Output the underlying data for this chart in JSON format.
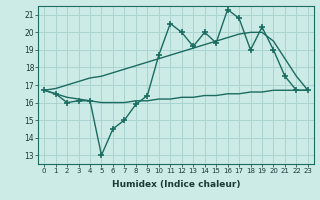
{
  "title": "",
  "xlabel": "Humidex (Indice chaleur)",
  "ylabel": "",
  "background_color": "#cceae6",
  "grid_color": "#aad4d0",
  "line_color": "#1a6b60",
  "xlim": [
    -0.5,
    23.5
  ],
  "ylim": [
    12.5,
    21.5
  ],
  "yticks": [
    13,
    14,
    15,
    16,
    17,
    18,
    19,
    20,
    21
  ],
  "xticks": [
    0,
    1,
    2,
    3,
    4,
    5,
    6,
    7,
    8,
    9,
    10,
    11,
    12,
    13,
    14,
    15,
    16,
    17,
    18,
    19,
    20,
    21,
    22,
    23
  ],
  "main_y": [
    16.7,
    16.5,
    16.0,
    16.1,
    16.1,
    13.0,
    14.5,
    15.0,
    15.9,
    16.4,
    18.7,
    20.5,
    20.0,
    19.2,
    20.0,
    19.4,
    21.3,
    20.8,
    19.0,
    20.3,
    19.0,
    17.5,
    16.7,
    16.7
  ],
  "upper_y": [
    16.7,
    16.8,
    17.0,
    17.2,
    17.4,
    17.5,
    17.7,
    17.9,
    18.1,
    18.3,
    18.5,
    18.7,
    18.9,
    19.1,
    19.3,
    19.5,
    19.7,
    19.9,
    20.0,
    20.0,
    19.5,
    18.5,
    17.5,
    16.7
  ],
  "lower_y": [
    16.7,
    16.5,
    16.3,
    16.2,
    16.1,
    16.0,
    16.0,
    16.0,
    16.1,
    16.1,
    16.2,
    16.2,
    16.3,
    16.3,
    16.4,
    16.4,
    16.5,
    16.5,
    16.6,
    16.6,
    16.7,
    16.7,
    16.7,
    16.7
  ]
}
